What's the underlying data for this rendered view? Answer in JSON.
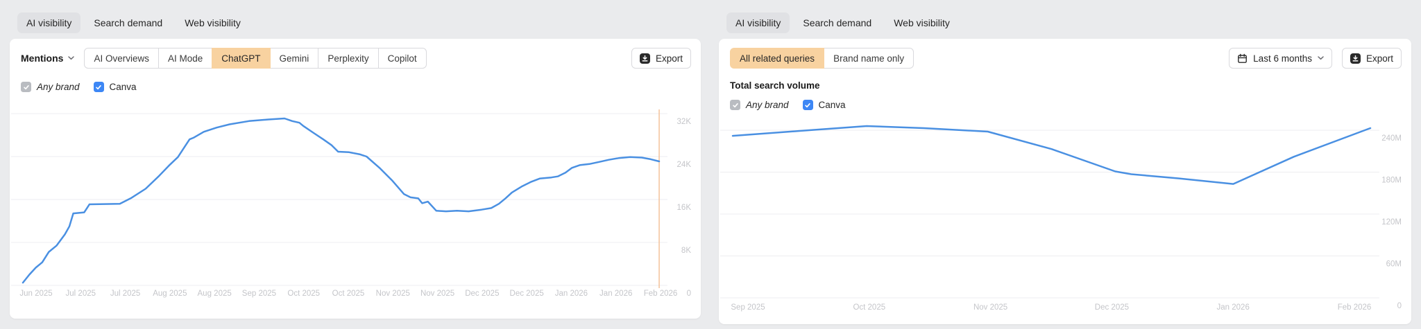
{
  "left": {
    "tabs": [
      "AI visibility",
      "Search demand",
      "Web visibility"
    ],
    "active_tab": "AI visibility",
    "toolbar": {
      "metric_label": "Mentions",
      "segments": [
        "AI Overviews",
        "AI Mode",
        "ChatGPT",
        "Gemini",
        "Perplexity",
        "Copilot"
      ],
      "active_segment": "ChatGPT",
      "export_label": "Export"
    },
    "filters": {
      "any_brand": "Any brand",
      "brand": "Canva"
    }
  },
  "right": {
    "tabs": [
      "AI visibility",
      "Search demand",
      "Web visibility"
    ],
    "active_tab": "AI visibility",
    "toolbar": {
      "segments": [
        "All related queries",
        "Brand name only"
      ],
      "active_segment": "All related queries",
      "date_range_label": "Last 6 months",
      "export_label": "Export"
    },
    "heading": "Total search volume",
    "filters": {
      "any_brand": "Any brand",
      "brand": "Canva"
    }
  },
  "colors": {
    "line_blue": "#4a90e2",
    "selected_segment_orange": "#f8d2a0",
    "marker_orange": "#f4c29a",
    "checkbox_blue": "#3d87f5",
    "checkbox_gray": "#b9bcc1",
    "grid_gray": "#ededf0",
    "axis_text": "#c4c5c9"
  },
  "chart_data": [
    {
      "type": "line",
      "title": "Mentions (ChatGPT) over time",
      "grid": "horizontal",
      "legend": "none",
      "ylim": [
        0,
        32000
      ],
      "yticks": [
        {
          "value": 32000,
          "label": "32K"
        },
        {
          "value": 24000,
          "label": "24K"
        },
        {
          "value": 16000,
          "label": "16K"
        },
        {
          "value": 8000,
          "label": "8K"
        },
        {
          "value": 0,
          "label": "0"
        }
      ],
      "x_labels": [
        "Jun 2025",
        "Jul 2025",
        "Jul 2025",
        "Aug 2025",
        "Aug 2025",
        "Sep 2025",
        "Oct 2025",
        "Oct 2025",
        "Nov 2025",
        "Nov 2025",
        "Dec 2025",
        "Dec 2025",
        "Jan 2026",
        "Jan 2026",
        "Feb 2026"
      ],
      "marker_line": {
        "x_fraction": 0.985,
        "color": "#f4c29a",
        "at_label": "Feb 2026"
      },
      "series": [
        {
          "name": "Canva",
          "color": "#4a90e2",
          "points": [
            [
              0.0,
              500
            ],
            [
              0.01,
              2000
            ],
            [
              0.02,
              3300
            ],
            [
              0.03,
              4300
            ],
            [
              0.04,
              6200
            ],
            [
              0.052,
              7400
            ],
            [
              0.065,
              9500
            ],
            [
              0.072,
              11000
            ],
            [
              0.078,
              13400
            ],
            [
              0.095,
              13600
            ],
            [
              0.103,
              15100
            ],
            [
              0.15,
              15200
            ],
            [
              0.168,
              16300
            ],
            [
              0.19,
              18000
            ],
            [
              0.21,
              20300
            ],
            [
              0.226,
              22300
            ],
            [
              0.24,
              23900
            ],
            [
              0.252,
              26100
            ],
            [
              0.258,
              27200
            ],
            [
              0.264,
              27500
            ],
            [
              0.28,
              28600
            ],
            [
              0.3,
              29400
            ],
            [
              0.32,
              30000
            ],
            [
              0.35,
              30600
            ],
            [
              0.38,
              30900
            ],
            [
              0.405,
              31100
            ],
            [
              0.417,
              30600
            ],
            [
              0.428,
              30300
            ],
            [
              0.434,
              29700
            ],
            [
              0.45,
              28400
            ],
            [
              0.465,
              27200
            ],
            [
              0.478,
              26100
            ],
            [
              0.488,
              24900
            ],
            [
              0.505,
              24800
            ],
            [
              0.522,
              24400
            ],
            [
              0.532,
              24000
            ],
            [
              0.552,
              21900
            ],
            [
              0.572,
              19500
            ],
            [
              0.59,
              17000
            ],
            [
              0.6,
              16400
            ],
            [
              0.612,
              16200
            ],
            [
              0.618,
              15300
            ],
            [
              0.627,
              15600
            ],
            [
              0.64,
              13900
            ],
            [
              0.655,
              13800
            ],
            [
              0.672,
              13900
            ],
            [
              0.69,
              13800
            ],
            [
              0.71,
              14100
            ],
            [
              0.725,
              14400
            ],
            [
              0.737,
              15200
            ],
            [
              0.747,
              16200
            ],
            [
              0.757,
              17300
            ],
            [
              0.772,
              18400
            ],
            [
              0.787,
              19300
            ],
            [
              0.8,
              19900
            ],
            [
              0.818,
              20100
            ],
            [
              0.828,
              20300
            ],
            [
              0.84,
              21000
            ],
            [
              0.85,
              21900
            ],
            [
              0.862,
              22400
            ],
            [
              0.877,
              22600
            ],
            [
              0.892,
              23000
            ],
            [
              0.907,
              23400
            ],
            [
              0.922,
              23700
            ],
            [
              0.94,
              23900
            ],
            [
              0.958,
              23800
            ],
            [
              0.972,
              23500
            ],
            [
              0.985,
              23100
            ]
          ]
        }
      ]
    },
    {
      "type": "line",
      "title": "Total search volume over time",
      "grid": "horizontal",
      "legend": "none",
      "value_unit": "millions",
      "ylim": [
        0,
        240
      ],
      "yticks": [
        {
          "value": 240,
          "label": "240M"
        },
        {
          "value": 180,
          "label": "180M"
        },
        {
          "value": 120,
          "label": "120M"
        },
        {
          "value": 60,
          "label": "60M"
        },
        {
          "value": 0,
          "label": "0"
        }
      ],
      "x_labels": [
        "Sep 2025",
        "Oct 2025",
        "Nov 2025",
        "Dec 2025",
        "Jan 2026",
        "Feb 2026"
      ],
      "series": [
        {
          "name": "Canva",
          "color": "#4a90e2",
          "points": [
            [
              0.0,
              232
            ],
            [
              0.105,
              239
            ],
            [
              0.21,
              246
            ],
            [
              0.3,
              243
            ],
            [
              0.4,
              238
            ],
            [
              0.5,
              213
            ],
            [
              0.6,
              181
            ],
            [
              0.625,
              177
            ],
            [
              0.7,
              171
            ],
            [
              0.785,
              163
            ],
            [
              0.88,
              202
            ],
            [
              1.0,
              243
            ]
          ]
        }
      ]
    }
  ]
}
